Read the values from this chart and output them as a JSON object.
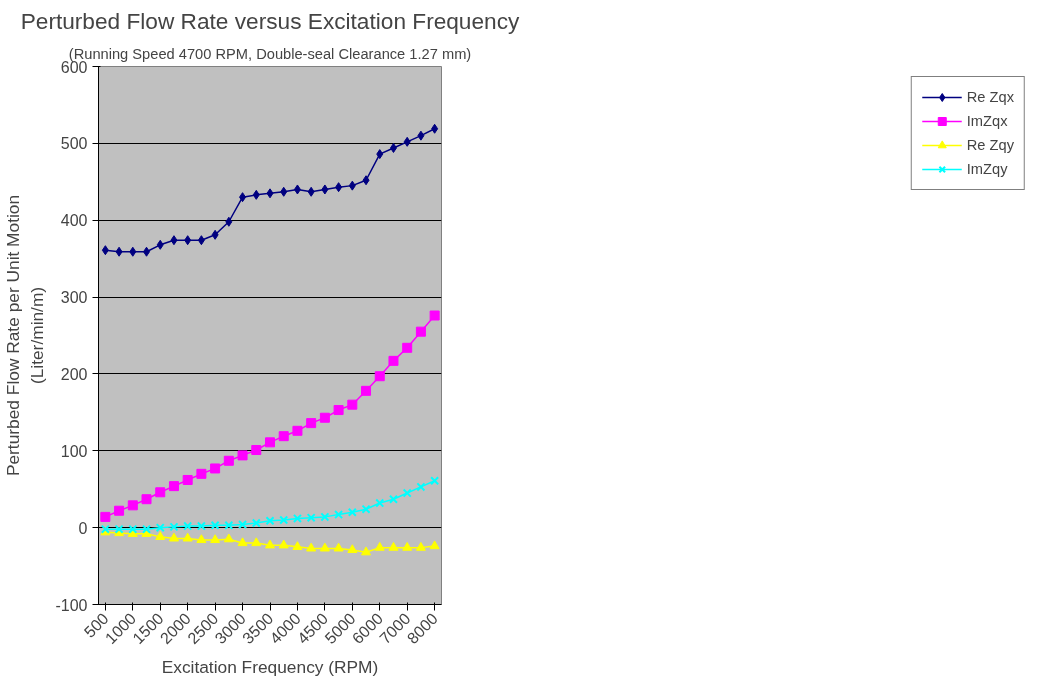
{
  "chart_data": {
    "type": "line",
    "title": "Perturbed Flow Rate versus Excitation Frequency",
    "subtitle": "(Running Speed 4700 RPM, Double-seal Clearance 1.27 mm)",
    "xlabel": "Excitation Frequency (RPM)",
    "ylabel": "Perturbed Flow Rate per Unit Motion\n(Liter/min/m)",
    "categories": [
      "500",
      null,
      "1000",
      null,
      "1500",
      null,
      "2000",
      null,
      "2500",
      null,
      "3000",
      null,
      "3500",
      null,
      "4000",
      null,
      "4500",
      null,
      "5000",
      null,
      "6000",
      null,
      "7000",
      null,
      "8000"
    ],
    "ylim": [
      -100,
      600
    ],
    "yticks": [
      -100,
      0,
      100,
      200,
      300,
      400,
      500,
      600
    ],
    "grid": "y",
    "legend": "right",
    "line_style": "solid",
    "series": [
      {
        "name": "Re Zqx",
        "color": "#000080",
        "marker": "diamond",
        "values": [
          361,
          359,
          359,
          359,
          368,
          374,
          374,
          374,
          381,
          398,
          430,
          433,
          435,
          437,
          440,
          437,
          440,
          443,
          445,
          452,
          486,
          494,
          502,
          510,
          519
        ]
      },
      {
        "name": "ImZqx",
        "color": "#ff00ff",
        "marker": "square",
        "values": [
          14,
          22,
          29,
          37,
          46,
          54,
          62,
          70,
          77,
          87,
          94,
          101,
          111,
          119,
          126,
          136,
          143,
          153,
          160,
          178,
          197,
          217,
          234,
          255,
          276
        ]
      },
      {
        "name": "Re Zqy",
        "color": "#ffff00",
        "marker": "triangle",
        "values": [
          -6,
          -7,
          -8,
          -8,
          -12,
          -14,
          -14,
          -16,
          -16,
          -15,
          -20,
          -20,
          -23,
          -23,
          -25,
          -27,
          -27,
          -27,
          -29,
          -32,
          -26,
          -26,
          -26,
          -26,
          -24
        ]
      },
      {
        "name": "ImZqy",
        "color": "#00ffff",
        "marker": "cross",
        "values": [
          -2,
          -2,
          -2,
          -2,
          0,
          1,
          2,
          2,
          3,
          3,
          4,
          6,
          9,
          10,
          12,
          13,
          14,
          17,
          20,
          24,
          32,
          37,
          45,
          53,
          61
        ]
      }
    ]
  }
}
